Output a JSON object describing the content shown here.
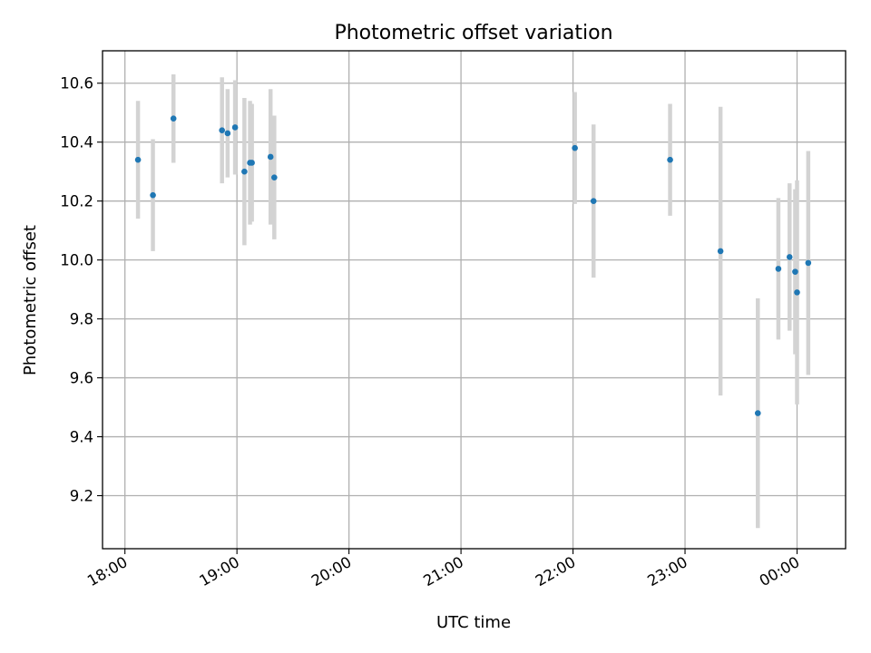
{
  "chart_data": {
    "type": "scatter",
    "title": "Photometric offset variation",
    "xlabel": "UTC time",
    "ylabel": "Photometric offset",
    "x_axis_type": "time",
    "xlim": [
      "17:48",
      "00:26"
    ],
    "ylim": [
      9.02,
      10.71
    ],
    "x_ticks": [
      {
        "t": "18:00",
        "label": "18:00"
      },
      {
        "t": "19:00",
        "label": "19:00"
      },
      {
        "t": "20:00",
        "label": "20:00"
      },
      {
        "t": "21:00",
        "label": "21:00"
      },
      {
        "t": "22:00",
        "label": "22:00"
      },
      {
        "t": "23:00",
        "label": "23:00"
      },
      {
        "t": "00:00",
        "label": "00:00"
      }
    ],
    "y_ticks": [
      {
        "v": 9.2,
        "label": "9.2"
      },
      {
        "v": 9.4,
        "label": "9.4"
      },
      {
        "v": 9.6,
        "label": "9.6"
      },
      {
        "v": 9.8,
        "label": "9.8"
      },
      {
        "v": 10.0,
        "label": "10.0"
      },
      {
        "v": 10.2,
        "label": "10.2"
      },
      {
        "v": 10.4,
        "label": "10.4"
      },
      {
        "v": 10.6,
        "label": "10.6"
      }
    ],
    "grid": true,
    "marker_color": "#1f77b4",
    "errorbar_color": "#d3d3d3",
    "points": [
      {
        "t": "18:07",
        "y": 10.34,
        "err": 0.2
      },
      {
        "t": "18:15",
        "y": 10.22,
        "err": 0.19
      },
      {
        "t": "18:26",
        "y": 10.48,
        "err": 0.15
      },
      {
        "t": "18:52",
        "y": 10.44,
        "err": 0.18
      },
      {
        "t": "18:55",
        "y": 10.43,
        "err": 0.15
      },
      {
        "t": "18:59",
        "y": 10.45,
        "err": 0.16
      },
      {
        "t": "19:04",
        "y": 10.3,
        "err": 0.25
      },
      {
        "t": "19:07",
        "y": 10.33,
        "err": 0.21
      },
      {
        "t": "19:08",
        "y": 10.33,
        "err": 0.2
      },
      {
        "t": "19:18",
        "y": 10.35,
        "err": 0.23
      },
      {
        "t": "19:20",
        "y": 10.28,
        "err": 0.21
      },
      {
        "t": "22:01",
        "y": 10.38,
        "err": 0.19
      },
      {
        "t": "22:11",
        "y": 10.2,
        "err": 0.26
      },
      {
        "t": "22:52",
        "y": 10.34,
        "err": 0.19
      },
      {
        "t": "23:19",
        "y": 10.03,
        "err": 0.49
      },
      {
        "t": "23:39",
        "y": 9.48,
        "err": 0.39
      },
      {
        "t": "23:50",
        "y": 9.97,
        "err": 0.24
      },
      {
        "t": "23:56",
        "y": 10.01,
        "err": 0.25
      },
      {
        "t": "23:59",
        "y": 9.96,
        "err": 0.28
      },
      {
        "t": "00:00",
        "y": 9.89,
        "err": 0.38
      },
      {
        "t": "00:06",
        "y": 9.99,
        "err": 0.38
      }
    ]
  }
}
